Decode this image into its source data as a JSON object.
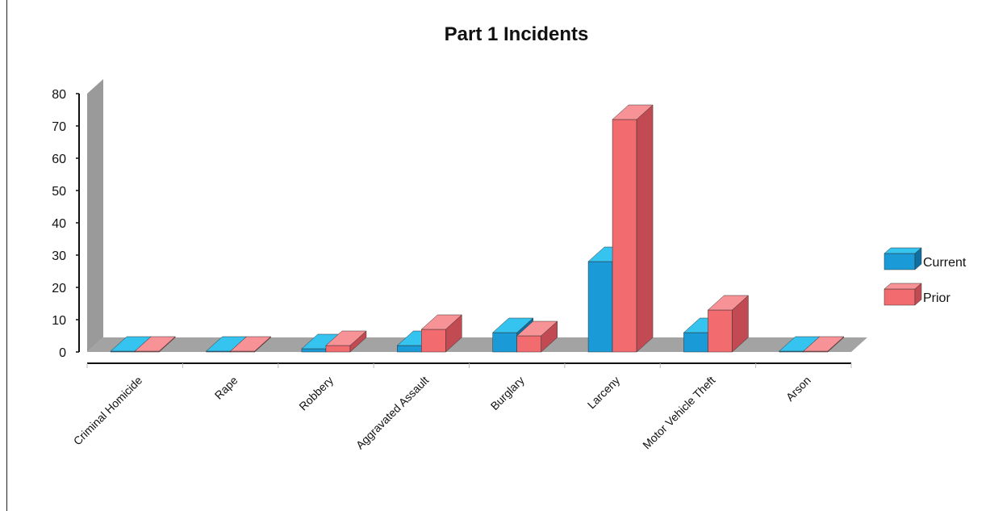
{
  "chart_data": {
    "type": "bar",
    "title": "Part 1 Incidents",
    "xlabel": "",
    "ylabel": "",
    "ylim": [
      0,
      80
    ],
    "yticks": [
      0,
      10,
      20,
      30,
      40,
      50,
      60,
      70,
      80
    ],
    "categories": [
      "Criminal Homicide",
      "Rape",
      "Robbery",
      "Aggravated Assault",
      "Burglary",
      "Larceny",
      "Motor Vehicle Theft",
      "Arson"
    ],
    "series": [
      {
        "name": "Current",
        "values": [
          0,
          0,
          1,
          2,
          6,
          28,
          6,
          0
        ],
        "color": "#1a9ad6",
        "top_color": "#35c3f0",
        "side_color": "#0f6fa0"
      },
      {
        "name": "Prior",
        "values": [
          0,
          0,
          2,
          7,
          5,
          72,
          13,
          0
        ],
        "color": "#f26b6f",
        "top_color": "#f79297",
        "side_color": "#c24a52"
      }
    ],
    "legend_position": "right",
    "grid": false,
    "style": "3d"
  }
}
